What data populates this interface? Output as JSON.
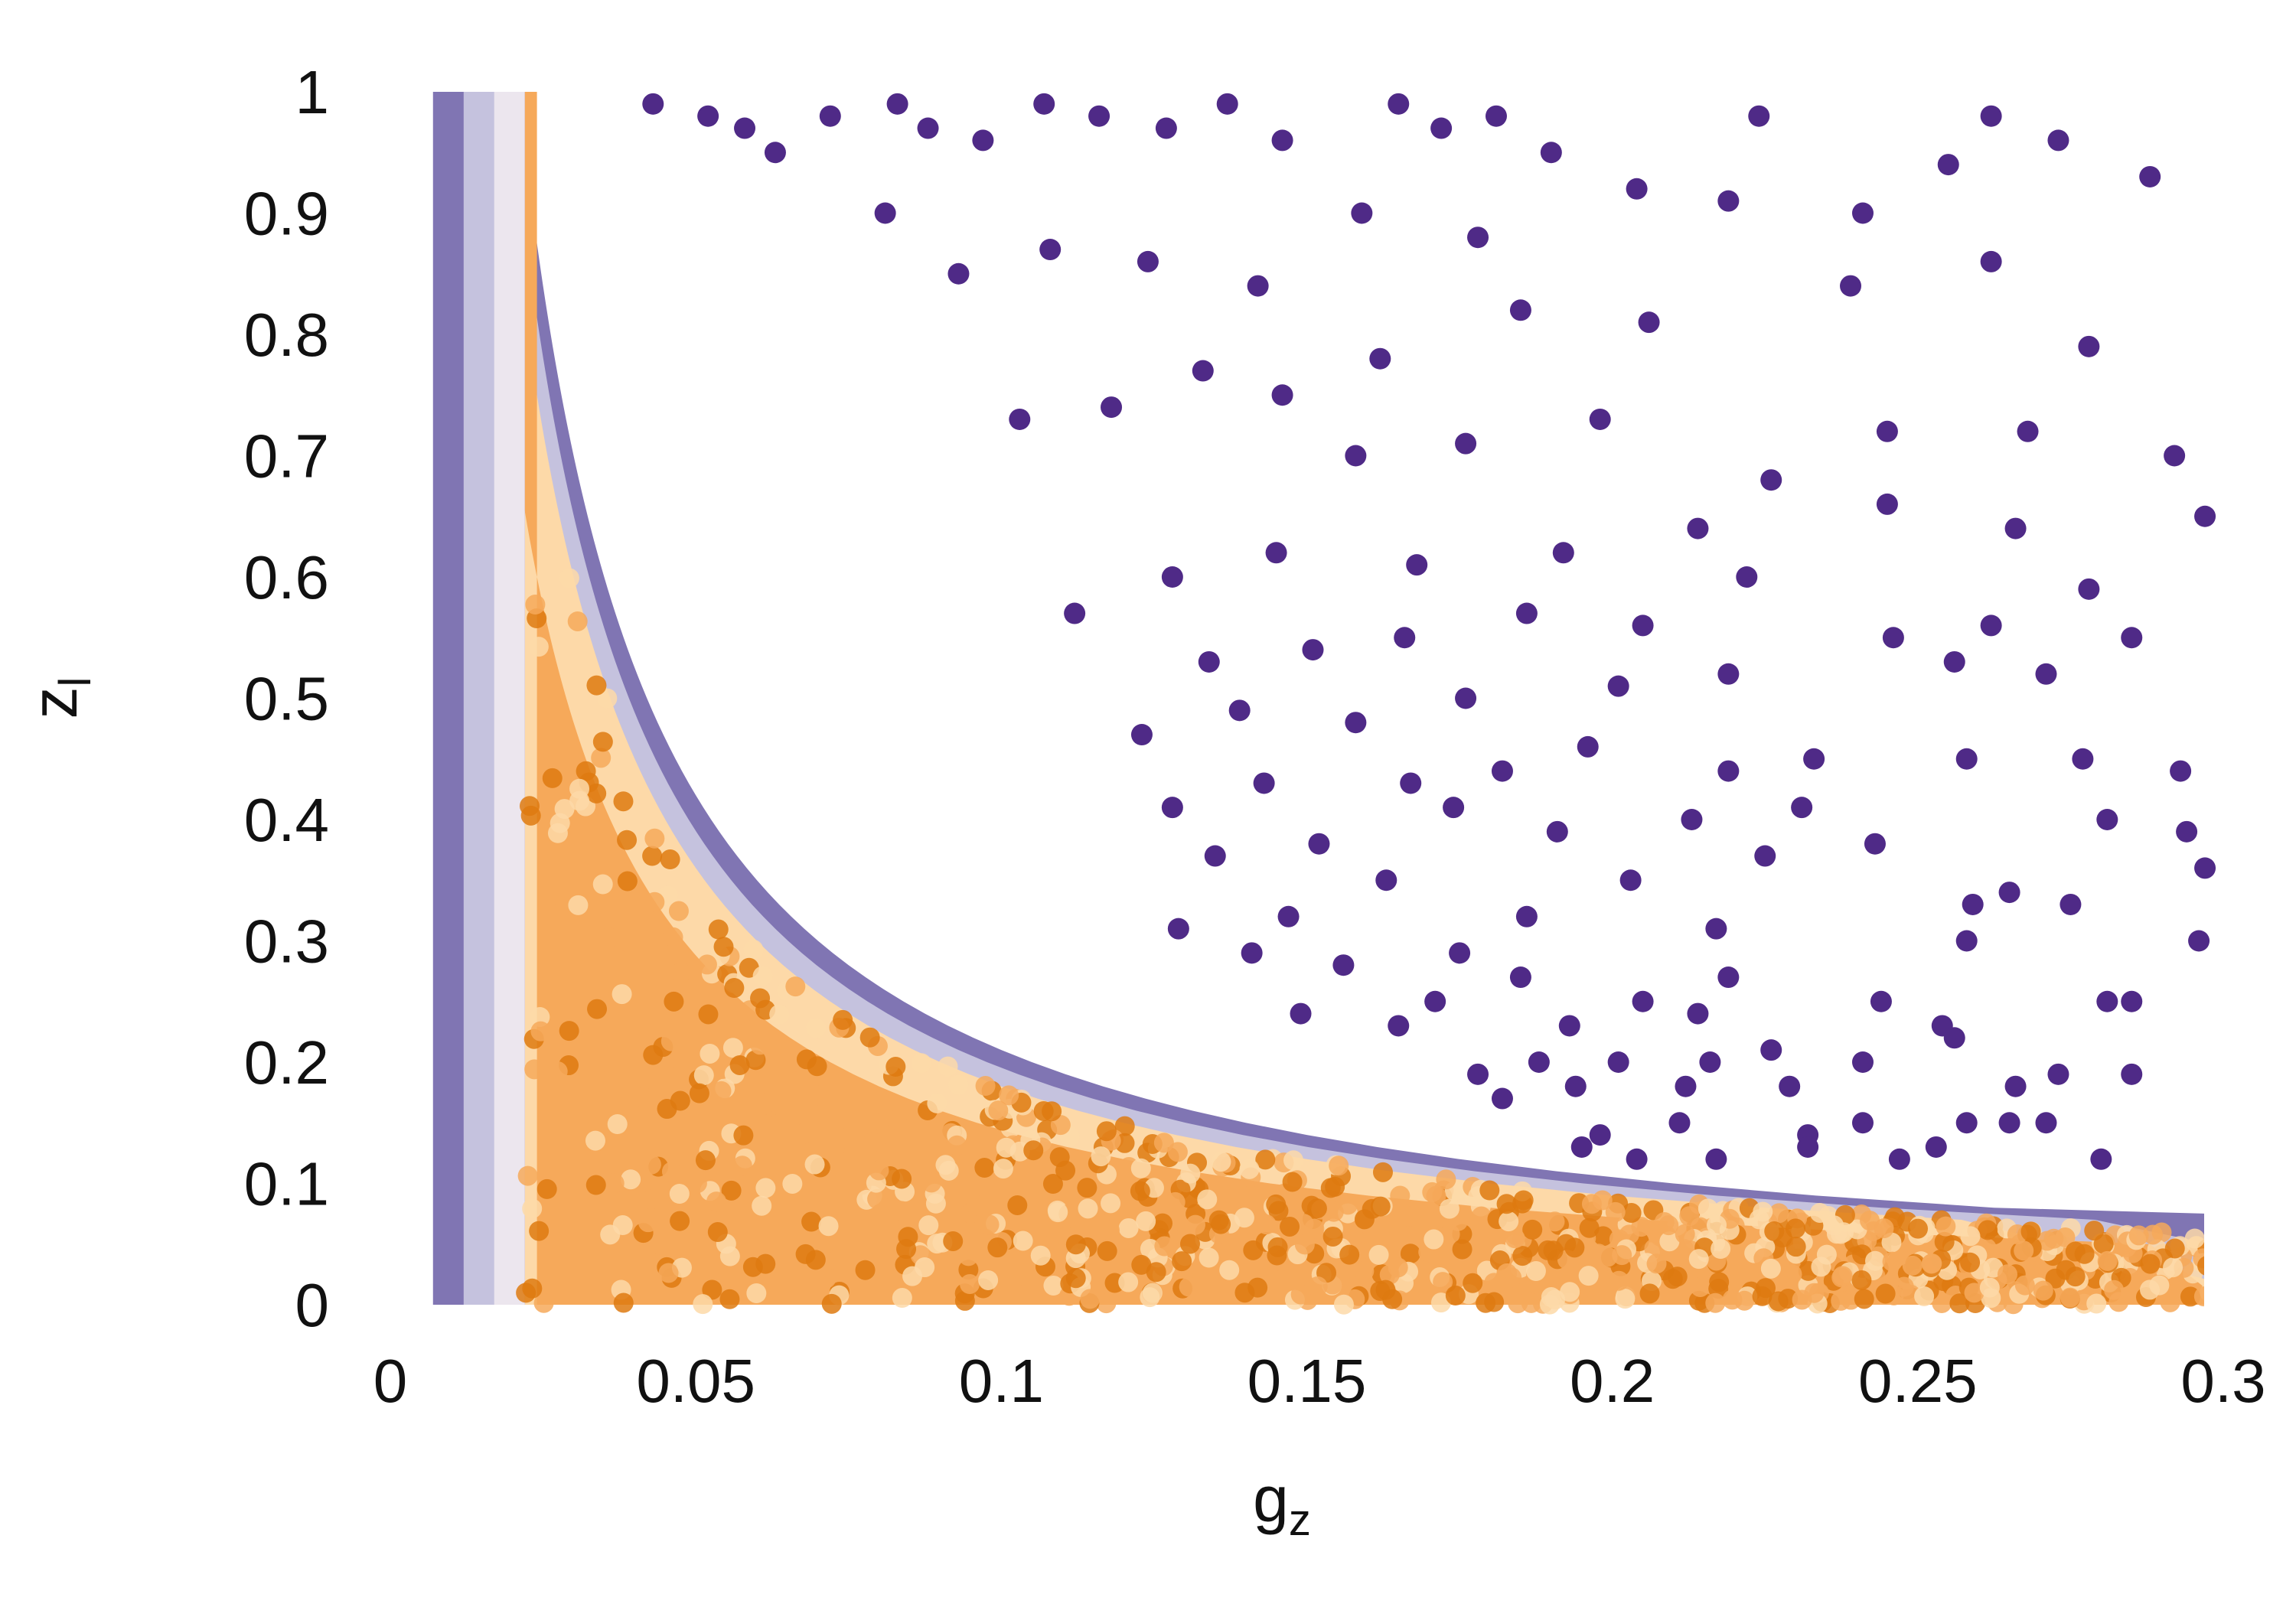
{
  "chart_data": {
    "type": "scatter",
    "xlabel": "g",
    "xlabel_sub": "z",
    "ylabel": "z",
    "ylabel_sub": "l",
    "xlim": [
      0,
      0.3
    ],
    "ylim": [
      0,
      1
    ],
    "x_ticks": [
      {
        "value": 0,
        "label": "0"
      },
      {
        "value": 0.05,
        "label": "0.05"
      },
      {
        "value": 0.1,
        "label": "0.1"
      },
      {
        "value": 0.15,
        "label": "0.15"
      },
      {
        "value": 0.2,
        "label": "0.2"
      },
      {
        "value": 0.25,
        "label": "0.25"
      },
      {
        "value": 0.3,
        "label": "0.3"
      }
    ],
    "y_ticks": [
      {
        "value": 0,
        "label": "0"
      },
      {
        "value": 0.1,
        "label": "0.1"
      },
      {
        "value": 0.2,
        "label": "0.2"
      },
      {
        "value": 0.3,
        "label": "0.3"
      },
      {
        "value": 0.4,
        "label": "0.4"
      },
      {
        "value": 0.5,
        "label": "0.5"
      },
      {
        "value": 0.6,
        "label": "0.6"
      },
      {
        "value": 0.7,
        "label": "0.7"
      },
      {
        "value": 0.8,
        "label": "0.8"
      },
      {
        "value": 0.9,
        "label": "0.9"
      },
      {
        "value": 1,
        "label": "1"
      }
    ],
    "grid": false,
    "legend": "none",
    "colors": {
      "purple_dark": "#4f2a87",
      "purple_mid": "#8075b3",
      "purple_light": "#c5c2de",
      "neutral": "#ece6ee",
      "orange_light": "#fdd9a8",
      "orange_mid": "#f6a95a",
      "orange_dark": "#de7a10"
    },
    "region_boundaries": {
      "left_band_gz_min": 0.007,
      "left_band_gz_max": 0.022,
      "orange_region_curve_k": 0.018,
      "purple_edge_curve_k": 0.021,
      "gz_max": 0.298
    },
    "points": [
      {
        "x": 0.043,
        "y": 0.99
      },
      {
        "x": 0.052,
        "y": 0.98
      },
      {
        "x": 0.058,
        "y": 0.97
      },
      {
        "x": 0.063,
        "y": 0.95
      },
      {
        "x": 0.072,
        "y": 0.98
      },
      {
        "x": 0.083,
        "y": 0.99
      },
      {
        "x": 0.088,
        "y": 0.97
      },
      {
        "x": 0.097,
        "y": 0.96
      },
      {
        "x": 0.107,
        "y": 0.99
      },
      {
        "x": 0.116,
        "y": 0.98
      },
      {
        "x": 0.127,
        "y": 0.97
      },
      {
        "x": 0.137,
        "y": 0.99
      },
      {
        "x": 0.146,
        "y": 0.96
      },
      {
        "x": 0.165,
        "y": 0.99
      },
      {
        "x": 0.172,
        "y": 0.97
      },
      {
        "x": 0.181,
        "y": 0.98
      },
      {
        "x": 0.19,
        "y": 0.95
      },
      {
        "x": 0.224,
        "y": 0.98
      },
      {
        "x": 0.255,
        "y": 0.94
      },
      {
        "x": 0.262,
        "y": 0.98
      },
      {
        "x": 0.273,
        "y": 0.96
      },
      {
        "x": 0.288,
        "y": 0.93
      },
      {
        "x": 0.241,
        "y": 0.9
      },
      {
        "x": 0.219,
        "y": 0.91
      },
      {
        "x": 0.204,
        "y": 0.92
      },
      {
        "x": 0.178,
        "y": 0.88
      },
      {
        "x": 0.159,
        "y": 0.9
      },
      {
        "x": 0.142,
        "y": 0.84
      },
      {
        "x": 0.124,
        "y": 0.86
      },
      {
        "x": 0.108,
        "y": 0.87
      },
      {
        "x": 0.093,
        "y": 0.85
      },
      {
        "x": 0.081,
        "y": 0.9
      },
      {
        "x": 0.239,
        "y": 0.84
      },
      {
        "x": 0.262,
        "y": 0.86
      },
      {
        "x": 0.278,
        "y": 0.79
      },
      {
        "x": 0.206,
        "y": 0.81
      },
      {
        "x": 0.185,
        "y": 0.82
      },
      {
        "x": 0.162,
        "y": 0.78
      },
      {
        "x": 0.146,
        "y": 0.75
      },
      {
        "x": 0.133,
        "y": 0.77
      },
      {
        "x": 0.118,
        "y": 0.74
      },
      {
        "x": 0.103,
        "y": 0.73
      },
      {
        "x": 0.292,
        "y": 0.7
      },
      {
        "x": 0.268,
        "y": 0.72
      },
      {
        "x": 0.245,
        "y": 0.72
      },
      {
        "x": 0.226,
        "y": 0.68
      },
      {
        "x": 0.198,
        "y": 0.73
      },
      {
        "x": 0.176,
        "y": 0.71
      },
      {
        "x": 0.158,
        "y": 0.7
      },
      {
        "x": 0.297,
        "y": 0.65
      },
      {
        "x": 0.266,
        "y": 0.64
      },
      {
        "x": 0.245,
        "y": 0.66
      },
      {
        "x": 0.214,
        "y": 0.64
      },
      {
        "x": 0.192,
        "y": 0.62
      },
      {
        "x": 0.168,
        "y": 0.61
      },
      {
        "x": 0.145,
        "y": 0.62
      },
      {
        "x": 0.128,
        "y": 0.6
      },
      {
        "x": 0.112,
        "y": 0.57
      },
      {
        "x": 0.278,
        "y": 0.59
      },
      {
        "x": 0.262,
        "y": 0.56
      },
      {
        "x": 0.246,
        "y": 0.55
      },
      {
        "x": 0.222,
        "y": 0.6
      },
      {
        "x": 0.205,
        "y": 0.56
      },
      {
        "x": 0.186,
        "y": 0.57
      },
      {
        "x": 0.166,
        "y": 0.55
      },
      {
        "x": 0.151,
        "y": 0.54
      },
      {
        "x": 0.134,
        "y": 0.53
      },
      {
        "x": 0.285,
        "y": 0.55
      },
      {
        "x": 0.271,
        "y": 0.52
      },
      {
        "x": 0.256,
        "y": 0.53
      },
      {
        "x": 0.219,
        "y": 0.52
      },
      {
        "x": 0.201,
        "y": 0.51
      },
      {
        "x": 0.176,
        "y": 0.5
      },
      {
        "x": 0.158,
        "y": 0.48
      },
      {
        "x": 0.139,
        "y": 0.49
      },
      {
        "x": 0.123,
        "y": 0.47
      },
      {
        "x": 0.293,
        "y": 0.44
      },
      {
        "x": 0.277,
        "y": 0.45
      },
      {
        "x": 0.258,
        "y": 0.45
      },
      {
        "x": 0.233,
        "y": 0.45
      },
      {
        "x": 0.219,
        "y": 0.44
      },
      {
        "x": 0.196,
        "y": 0.46
      },
      {
        "x": 0.182,
        "y": 0.44
      },
      {
        "x": 0.167,
        "y": 0.43
      },
      {
        "x": 0.143,
        "y": 0.43
      },
      {
        "x": 0.128,
        "y": 0.41
      },
      {
        "x": 0.294,
        "y": 0.39
      },
      {
        "x": 0.281,
        "y": 0.4
      },
      {
        "x": 0.243,
        "y": 0.38
      },
      {
        "x": 0.231,
        "y": 0.41
      },
      {
        "x": 0.213,
        "y": 0.4
      },
      {
        "x": 0.191,
        "y": 0.39
      },
      {
        "x": 0.174,
        "y": 0.41
      },
      {
        "x": 0.152,
        "y": 0.38
      },
      {
        "x": 0.135,
        "y": 0.37
      },
      {
        "x": 0.297,
        "y": 0.36
      },
      {
        "x": 0.275,
        "y": 0.33
      },
      {
        "x": 0.265,
        "y": 0.34
      },
      {
        "x": 0.259,
        "y": 0.33
      },
      {
        "x": 0.225,
        "y": 0.37
      },
      {
        "x": 0.203,
        "y": 0.35
      },
      {
        "x": 0.186,
        "y": 0.32
      },
      {
        "x": 0.163,
        "y": 0.35
      },
      {
        "x": 0.147,
        "y": 0.32
      },
      {
        "x": 0.129,
        "y": 0.31
      },
      {
        "x": 0.296,
        "y": 0.3
      },
      {
        "x": 0.258,
        "y": 0.3
      },
      {
        "x": 0.217,
        "y": 0.31
      },
      {
        "x": 0.175,
        "y": 0.29
      },
      {
        "x": 0.156,
        "y": 0.28
      },
      {
        "x": 0.141,
        "y": 0.29
      },
      {
        "x": 0.219,
        "y": 0.27
      },
      {
        "x": 0.185,
        "y": 0.27
      },
      {
        "x": 0.285,
        "y": 0.25
      },
      {
        "x": 0.281,
        "y": 0.25
      },
      {
        "x": 0.244,
        "y": 0.25
      },
      {
        "x": 0.205,
        "y": 0.25
      },
      {
        "x": 0.171,
        "y": 0.25
      },
      {
        "x": 0.149,
        "y": 0.24
      },
      {
        "x": 0.254,
        "y": 0.23
      },
      {
        "x": 0.214,
        "y": 0.24
      },
      {
        "x": 0.193,
        "y": 0.23
      },
      {
        "x": 0.165,
        "y": 0.23
      },
      {
        "x": 0.256,
        "y": 0.22
      },
      {
        "x": 0.285,
        "y": 0.19
      },
      {
        "x": 0.273,
        "y": 0.19
      },
      {
        "x": 0.241,
        "y": 0.2
      },
      {
        "x": 0.226,
        "y": 0.21
      },
      {
        "x": 0.216,
        "y": 0.2
      },
      {
        "x": 0.201,
        "y": 0.2
      },
      {
        "x": 0.188,
        "y": 0.2
      },
      {
        "x": 0.178,
        "y": 0.19
      },
      {
        "x": 0.266,
        "y": 0.18
      },
      {
        "x": 0.229,
        "y": 0.18
      },
      {
        "x": 0.212,
        "y": 0.18
      },
      {
        "x": 0.194,
        "y": 0.18
      },
      {
        "x": 0.182,
        "y": 0.17
      },
      {
        "x": 0.271,
        "y": 0.15
      },
      {
        "x": 0.265,
        "y": 0.15
      },
      {
        "x": 0.258,
        "y": 0.15
      },
      {
        "x": 0.241,
        "y": 0.15
      },
      {
        "x": 0.232,
        "y": 0.14
      },
      {
        "x": 0.211,
        "y": 0.15
      },
      {
        "x": 0.198,
        "y": 0.14
      },
      {
        "x": 0.195,
        "y": 0.13
      },
      {
        "x": 0.28,
        "y": 0.12
      },
      {
        "x": 0.253,
        "y": 0.13
      },
      {
        "x": 0.247,
        "y": 0.12
      },
      {
        "x": 0.232,
        "y": 0.13
      },
      {
        "x": 0.217,
        "y": 0.12
      },
      {
        "x": 0.204,
        "y": 0.12
      }
    ]
  }
}
